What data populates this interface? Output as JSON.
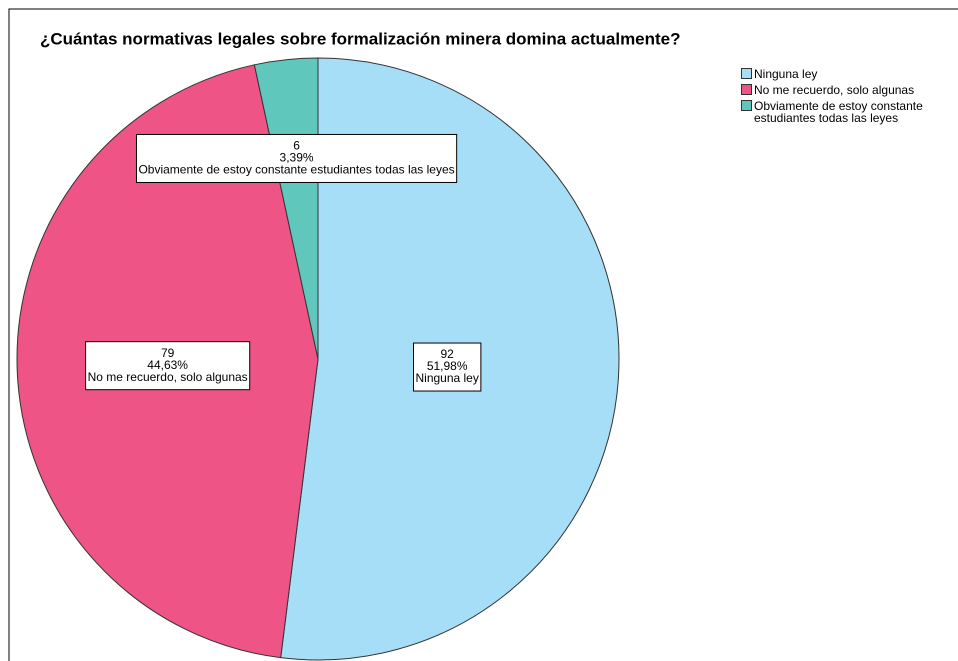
{
  "chart_data": {
    "type": "pie",
    "title": "¿Cuántas normativas legales sobre formalización minera domina actualmente?",
    "categories": [
      "Ninguna ley",
      "No me recuerdo, solo algunas",
      "Obviamente de estoy constante estudiantes todas las leyes"
    ],
    "values": [
      92,
      79,
      6
    ],
    "percentages": [
      51.98,
      44.63,
      3.39
    ],
    "percentage_labels": [
      "51,98%",
      "44,63%",
      "3,39%"
    ],
    "colors": [
      "#a6def8",
      "#ef5487",
      "#5fc7bb"
    ],
    "legend": "top-right"
  }
}
